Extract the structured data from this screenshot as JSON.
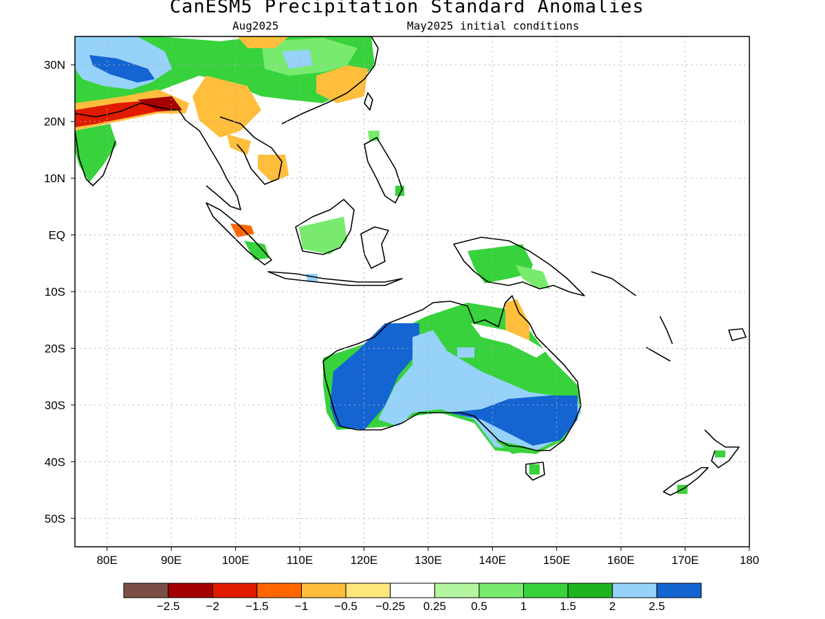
{
  "title": "CanESM5 Precipitation Standard Anomalies",
  "subtitle_left": "Aug2025",
  "subtitle_right": "May2025 initial conditions",
  "map": {
    "lat_labels": [
      "30N",
      "20N",
      "10N",
      "EQ",
      "10S",
      "20S",
      "30S",
      "40S",
      "50S"
    ],
    "lon_labels": [
      "80E",
      "90E",
      "100E",
      "110E",
      "120E",
      "130E",
      "140E",
      "150E",
      "160E",
      "170E",
      "180"
    ],
    "lon_range": [
      75,
      180
    ],
    "lat_range": [
      -55,
      35
    ],
    "grid_lines": "dotted"
  },
  "colorbar": {
    "colors": [
      "#7a5046",
      "#a50000",
      "#e01b00",
      "#ff6600",
      "#ffbe3c",
      "#ffe67a",
      "#ffffff",
      "#b4f5a0",
      "#78eb6e",
      "#37d23c",
      "#1eb41e",
      "#96d2fa",
      "#1464d2"
    ],
    "labels": [
      "−2.5",
      "−2",
      "−1.5",
      "−1",
      "−0.5",
      "−0.25",
      "0.25",
      "0.5",
      "1",
      "1.5",
      "2",
      "2.5"
    ]
  }
}
